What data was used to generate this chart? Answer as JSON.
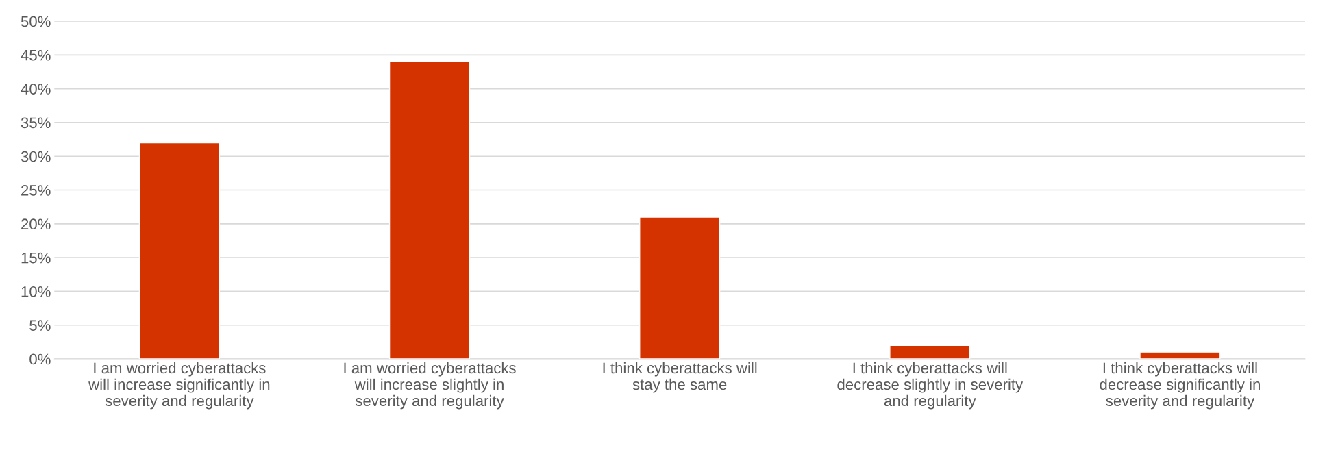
{
  "chart_data": {
    "type": "bar",
    "categories": [
      "I am worried cyberattacks\nwill increase significantly in\nseverity and regularity",
      "I am worried cyberattacks\nwill increase slightly in\nseverity and regularity",
      "I think cyberattacks will\nstay the same",
      "I think cyberattacks will\ndecrease slightly in severity\nand regularity",
      "I think cyberattacks will\ndecrease significantly in\nseverity and regularity"
    ],
    "values": [
      32,
      44,
      21,
      2,
      1
    ],
    "color": "#d43300",
    "ylim": [
      0,
      50
    ],
    "yticks": [
      {
        "value": 0,
        "label": "0%"
      },
      {
        "value": 5,
        "label": "5%"
      },
      {
        "value": 10,
        "label": "10%"
      },
      {
        "value": 15,
        "label": "15%"
      },
      {
        "value": 20,
        "label": "20%"
      },
      {
        "value": 25,
        "label": "25%"
      },
      {
        "value": 30,
        "label": "30%"
      },
      {
        "value": 35,
        "label": "35%"
      },
      {
        "value": 40,
        "label": "40%"
      },
      {
        "value": 45,
        "label": "45%"
      },
      {
        "value": 50,
        "label": "50%"
      }
    ],
    "grid": "y"
  }
}
